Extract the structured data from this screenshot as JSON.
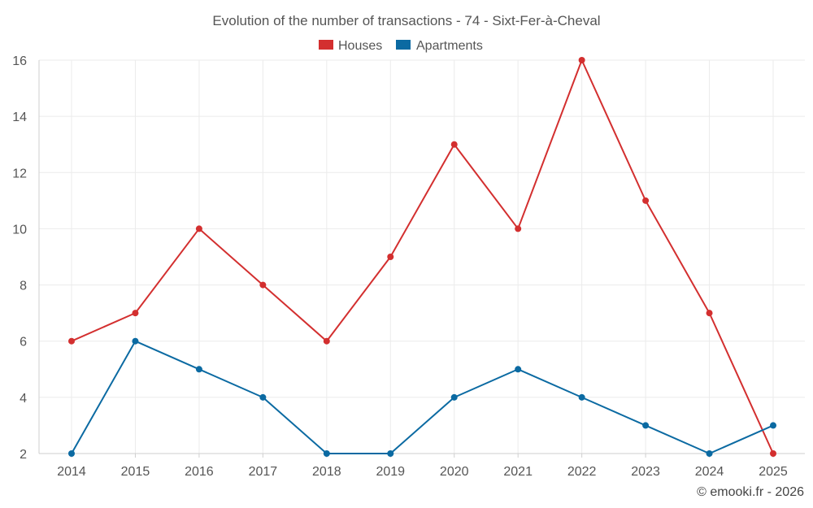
{
  "chart_data": {
    "type": "line",
    "title": "Evolution of the number of transactions - 74 - Sixt-Fer-à-Cheval",
    "x": [
      "2014",
      "2015",
      "2016",
      "2017",
      "2018",
      "2019",
      "2020",
      "2021",
      "2022",
      "2023",
      "2024",
      "2025"
    ],
    "series": [
      {
        "name": "Houses",
        "color": "#d32f2f",
        "values": [
          6,
          7,
          10,
          8,
          6,
          9,
          13,
          10,
          16,
          11,
          7,
          2
        ]
      },
      {
        "name": "Apartments",
        "color": "#0b6aa2",
        "values": [
          2,
          6,
          5,
          4,
          2,
          2,
          4,
          5,
          4,
          3,
          2,
          3
        ]
      }
    ],
    "ylim": [
      2,
      16
    ],
    "yticks": [
      2,
      4,
      6,
      8,
      10,
      12,
      14,
      16
    ],
    "grid": true,
    "legend_position": "top-center",
    "xlabel": "",
    "ylabel": ""
  },
  "credit": "© emooki.fr - 2026"
}
